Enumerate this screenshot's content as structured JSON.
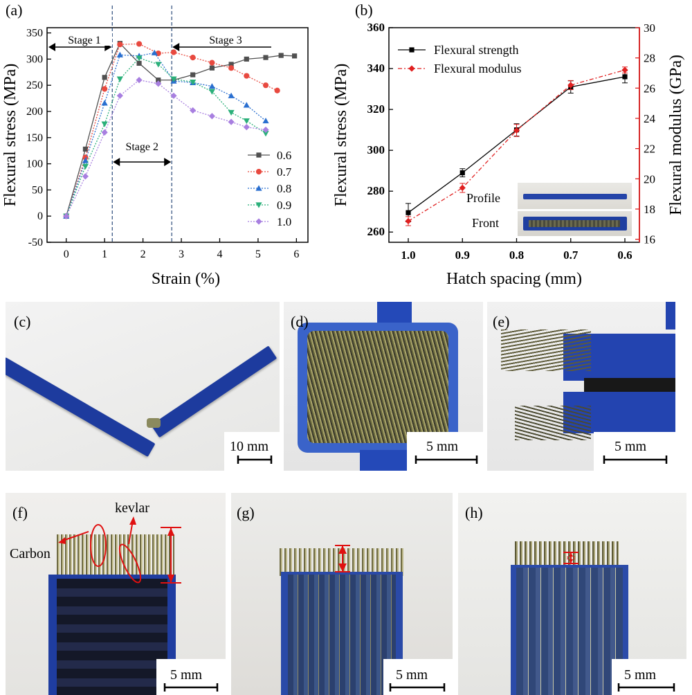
{
  "panels": {
    "a": "(a)",
    "b": "(b)",
    "c": "(c)",
    "d": "(d)",
    "e": "(e)",
    "f": "(f)",
    "g": "(g)",
    "h": "(h)"
  },
  "photos": {
    "c_scale": "10 mm",
    "d_scale": "5 mm",
    "e_scale": "5 mm",
    "f_scale": "5 mm",
    "g_scale": "5 mm",
    "h_scale": "5 mm",
    "f_kevlar": "kevlar",
    "f_carbon": "Carbon"
  },
  "inset": {
    "profile": "Profile",
    "front": "Front"
  },
  "chart_data": [
    {
      "type": "line",
      "panel": "(a)",
      "xlabel": "Strain (%)",
      "ylabel": "Flexural stress (MPa)",
      "xlim": [
        -0.5,
        6.3
      ],
      "ylim": [
        -50,
        360
      ],
      "xticks": [
        0,
        1,
        2,
        3,
        4,
        5,
        6
      ],
      "yticks": [
        -50,
        0,
        50,
        100,
        150,
        200,
        250,
        300,
        350
      ],
      "grid": false,
      "legend": "center-right",
      "stage_lines": [
        1.2,
        2.75
      ],
      "annotations": [
        "Stage 1",
        "Stage 2",
        "Stage 3"
      ],
      "series": [
        {
          "name": "0.6",
          "color": "#505050",
          "marker": "square",
          "x": [
            0,
            0.5,
            1.0,
            1.4,
            1.9,
            2.4,
            2.8,
            3.3,
            3.8,
            4.3,
            4.7,
            5.2,
            5.6,
            5.95
          ],
          "y": [
            0,
            128,
            265,
            330,
            292,
            260,
            260,
            270,
            283,
            290,
            300,
            303,
            307,
            306
          ]
        },
        {
          "name": "0.7",
          "color": "#e8493f",
          "marker": "circle",
          "x": [
            0,
            0.5,
            1.0,
            1.4,
            1.9,
            2.4,
            2.8,
            3.3,
            3.8,
            4.3,
            4.7,
            5.2,
            5.5
          ],
          "y": [
            0,
            112,
            243,
            328,
            329,
            311,
            313,
            303,
            293,
            283,
            268,
            250,
            240
          ]
        },
        {
          "name": "0.8",
          "color": "#2a6fd0",
          "marker": "triangle-up",
          "x": [
            0,
            0.5,
            1.0,
            1.4,
            1.9,
            2.3,
            2.8,
            3.3,
            3.8,
            4.3,
            4.7,
            5.2
          ],
          "y": [
            0,
            106,
            216,
            308,
            306,
            312,
            258,
            255,
            248,
            230,
            212,
            182
          ]
        },
        {
          "name": "0.9",
          "color": "#2bb07a",
          "marker": "triangle-down",
          "x": [
            0,
            0.5,
            1.0,
            1.4,
            1.9,
            2.4,
            2.8,
            3.3,
            3.8,
            4.3,
            4.7,
            5.2
          ],
          "y": [
            0,
            95,
            176,
            262,
            302,
            290,
            262,
            256,
            238,
            198,
            182,
            158
          ]
        },
        {
          "name": "1.0",
          "color": "#a87fe0",
          "marker": "diamond",
          "x": [
            0,
            0.5,
            1.0,
            1.4,
            1.9,
            2.4,
            2.8,
            3.3,
            3.8,
            4.3,
            4.7,
            5.2
          ],
          "y": [
            0,
            76,
            160,
            230,
            260,
            253,
            230,
            202,
            191,
            180,
            170,
            165
          ]
        }
      ]
    },
    {
      "type": "line",
      "panel": "(b)",
      "xlabel": "Hatch spacing (mm)",
      "ylabel": "Flexural stress (MPa)",
      "y2label": "Flexural modulus (GPa)",
      "categories": [
        "1.0",
        "0.9",
        "0.8",
        "0.7",
        "0.6"
      ],
      "ylim": [
        255,
        360
      ],
      "yticks": [
        260,
        280,
        300,
        320,
        340,
        360
      ],
      "y2lim": [
        15.8,
        30
      ],
      "y2ticks": [
        16,
        18,
        20,
        22,
        24,
        26,
        28,
        30
      ],
      "grid": false,
      "legend": "top-left",
      "series": [
        {
          "name": "Flexural strength",
          "axis": "left",
          "color": "#000000",
          "marker": "square",
          "values": [
            269.5,
            289,
            310,
            331,
            336
          ],
          "errors": [
            4.5,
            2,
            3,
            3,
            3
          ]
        },
        {
          "name": "Flexural modulus",
          "axis": "right",
          "color": "#e02020",
          "marker": "diamond",
          "values": [
            17.2,
            19.4,
            23.2,
            26.2,
            27.2
          ],
          "errors": [
            0.3,
            0.3,
            0.4,
            0.3,
            0.2
          ]
        }
      ]
    }
  ]
}
